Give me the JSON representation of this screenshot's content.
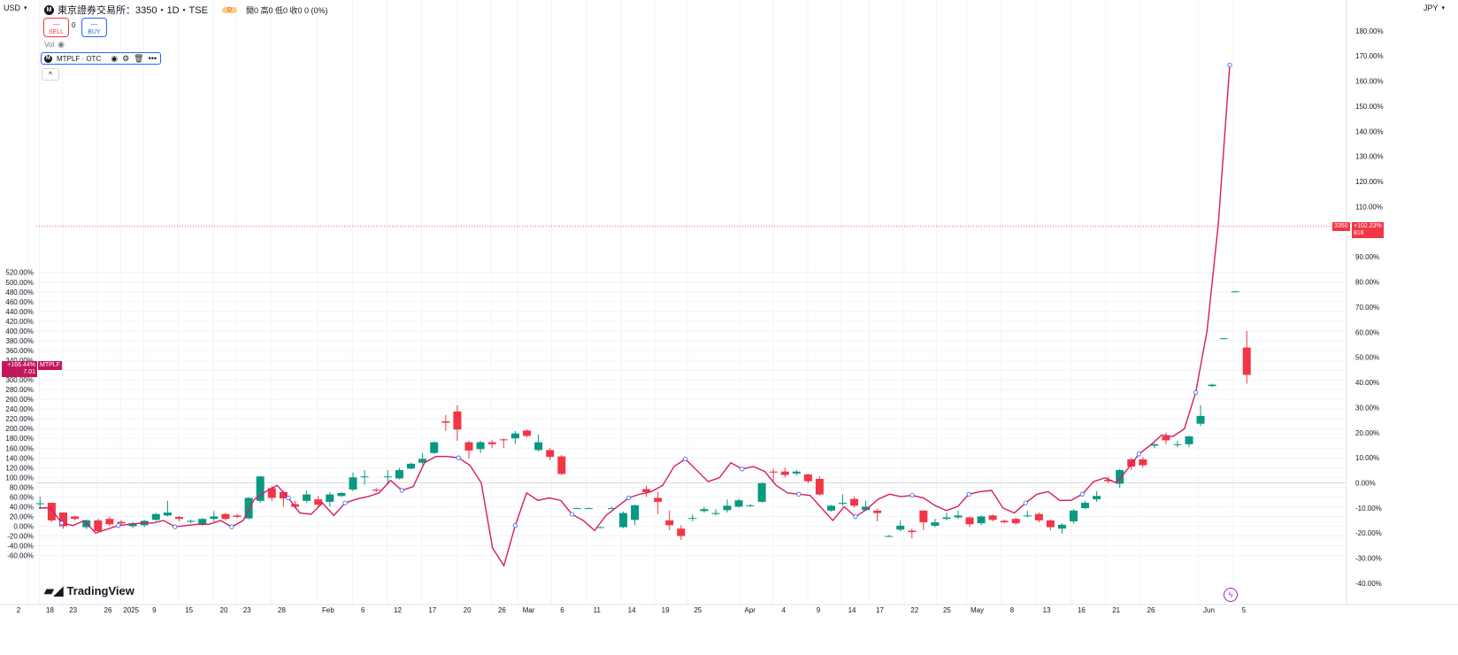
{
  "header": {
    "currency_left": "USD",
    "currency_right": "JPY",
    "symbol_icon": "M",
    "title": "東京證券交易所：3350・1D・TSE",
    "interval_badge": "D",
    "ohlc_text": "開0 高0 低0 收0 0 (0%)",
    "sell_label": "SELL",
    "buy_label": "BUY",
    "price_dash": "—",
    "spread": "0",
    "vol_label": "Vol",
    "compare_symbol": "MTPLF · OTC",
    "more_label": "•••",
    "collapse_label": "^"
  },
  "branding": {
    "logo_text": "TradingView"
  },
  "badges": {
    "main_pct": "+102.23%",
    "main_price": "3350",
    "main_sub": "816",
    "compare_pct": "+166.44%",
    "compare_price": "7.01",
    "compare_ticker": "MTPLF"
  },
  "icons": [
    "eye-icon",
    "settings-icon",
    "trash-icon",
    "lightning-icon",
    "chevron-up-icon"
  ],
  "colors": {
    "up": "#089981",
    "down": "#f23645",
    "compare_line": "#d81b60",
    "compare_marker": "#2962ff",
    "price_line": "#f23645"
  },
  "chart_data": {
    "type": "candlestick",
    "left_axis": {
      "unit": "%",
      "ylim": [
        -60,
        520
      ],
      "ticks": [
        "520.00%",
        "500.00%",
        "480.00%",
        "460.00%",
        "440.00%",
        "420.00%",
        "400.00%",
        "380.00%",
        "360.00%",
        "340.00%",
        "320.00%",
        "300.00%",
        "280.00%",
        "260.00%",
        "240.00%",
        "220.00%",
        "200.00%",
        "180.00%",
        "160.00%",
        "140.00%",
        "120.00%",
        "100.00%",
        "80.00%",
        "60.00%",
        "40.00%",
        "20.00%",
        "0.00%",
        "-20.00%",
        "-40.00%",
        "-60.00%"
      ]
    },
    "right_axis": {
      "unit": "%",
      "ylim": [
        -40,
        180
      ],
      "ticks": [
        "180.00%",
        "170.00%",
        "160.00%",
        "150.00%",
        "140.00%",
        "130.00%",
        "120.00%",
        "110.00%",
        "100.00%",
        "90.00%",
        "80.00%",
        "70.00%",
        "60.00%",
        "50.00%",
        "40.00%",
        "30.00%",
        "20.00%",
        "10.00%",
        "0.00%",
        "-10.00%",
        "-20.00%",
        "-30.00%",
        "-40.00%"
      ]
    },
    "x_ticks": [
      {
        "i": -1,
        "label": "2"
      },
      {
        "i": 0,
        "label": "18"
      },
      {
        "i": 2,
        "label": "23"
      },
      {
        "i": 5,
        "label": "26"
      },
      {
        "i": 7,
        "label": "2025"
      },
      {
        "i": 9,
        "label": "9"
      },
      {
        "i": 12,
        "label": "15"
      },
      {
        "i": 15,
        "label": "20"
      },
      {
        "i": 17,
        "label": "23"
      },
      {
        "i": 20,
        "label": "28"
      },
      {
        "i": 24,
        "label": "Feb"
      },
      {
        "i": 27,
        "label": "6"
      },
      {
        "i": 30,
        "label": "12"
      },
      {
        "i": 33,
        "label": "17"
      },
      {
        "i": 36,
        "label": "20"
      },
      {
        "i": 39,
        "label": "26"
      },
      {
        "i": 41.3,
        "label": "Mar"
      },
      {
        "i": 44.2,
        "label": "6"
      },
      {
        "i": 47.2,
        "label": "11"
      },
      {
        "i": 50.2,
        "label": "14"
      },
      {
        "i": 53.1,
        "label": "19"
      },
      {
        "i": 55.9,
        "label": "25"
      },
      {
        "i": 60.4,
        "label": "Apr"
      },
      {
        "i": 63.3,
        "label": "4"
      },
      {
        "i": 66.3,
        "label": "9"
      },
      {
        "i": 69.2,
        "label": "14"
      },
      {
        "i": 71.6,
        "label": "17"
      },
      {
        "i": 74.6,
        "label": "22"
      },
      {
        "i": 77.4,
        "label": "25"
      },
      {
        "i": 80,
        "label": "May"
      },
      {
        "i": 83,
        "label": "8"
      },
      {
        "i": 86,
        "label": "13"
      },
      {
        "i": 89,
        "label": "16"
      },
      {
        "i": 92,
        "label": "21"
      },
      {
        "i": 95,
        "label": "26"
      },
      {
        "i": 100,
        "label": "Jun"
      },
      {
        "i": 103,
        "label": "5"
      }
    ],
    "candles": [
      {
        "o": 45,
        "c": 47,
        "h": 60,
        "l": 35
      },
      {
        "o": 48,
        "c": 12,
        "h": 48,
        "l": 8
      },
      {
        "o": 28,
        "c": 0,
        "h": 28,
        "l": -5
      },
      {
        "o": 20,
        "c": 15,
        "h": 22,
        "l": 12
      },
      {
        "o": -2,
        "c": 12,
        "h": 14,
        "l": -6
      },
      {
        "o": 12,
        "c": -10,
        "h": 15,
        "l": -14
      },
      {
        "o": 15,
        "c": 4,
        "h": 20,
        "l": 0
      },
      {
        "o": 9,
        "c": 6,
        "h": 13,
        "l": 2
      },
      {
        "o": 0,
        "c": 6,
        "h": 9,
        "l": -4
      },
      {
        "o": 2,
        "c": 11,
        "h": 13,
        "l": -2
      },
      {
        "o": 13,
        "c": 25,
        "h": 27,
        "l": 11
      },
      {
        "o": 22,
        "c": 28,
        "h": 52,
        "l": 20
      },
      {
        "o": 19,
        "c": 15,
        "h": 21,
        "l": 10
      },
      {
        "o": 9,
        "c": 11,
        "h": 14,
        "l": 6
      },
      {
        "o": 3,
        "c": 15,
        "h": 17,
        "l": 1
      },
      {
        "o": 15,
        "c": 20,
        "h": 31,
        "l": 10
      },
      {
        "o": 25,
        "c": 15,
        "h": 27,
        "l": 12
      },
      {
        "o": 22,
        "c": 19,
        "h": 25,
        "l": 16
      },
      {
        "o": 16,
        "c": 58,
        "h": 60,
        "l": 14
      },
      {
        "o": 52,
        "c": 102,
        "h": 103,
        "l": 48
      },
      {
        "o": 78,
        "c": 58,
        "h": 82,
        "l": 52
      },
      {
        "o": 70,
        "c": 57,
        "h": 72,
        "l": 40
      },
      {
        "o": 45,
        "c": 40,
        "h": 52,
        "l": 36
      },
      {
        "o": 52,
        "c": 65,
        "h": 73,
        "l": 48
      },
      {
        "o": 55,
        "c": 44,
        "h": 62,
        "l": 40
      },
      {
        "o": 50,
        "c": 65,
        "h": 70,
        "l": 40
      },
      {
        "o": 62,
        "c": 68,
        "h": 70,
        "l": 60
      },
      {
        "o": 75,
        "c": 100,
        "h": 110,
        "l": 72
      },
      {
        "o": 101,
        "c": 102,
        "h": 115,
        "l": 85
      },
      {
        "o": 75,
        "c": 73,
        "h": 78,
        "l": 70
      },
      {
        "o": 101,
        "c": 102,
        "h": 115,
        "l": 85
      },
      {
        "o": 98,
        "c": 115,
        "h": 120,
        "l": 96
      },
      {
        "o": 118,
        "c": 128,
        "h": 130,
        "l": 116
      },
      {
        "o": 130,
        "c": 138,
        "h": 150,
        "l": 126
      },
      {
        "o": 150,
        "c": 172,
        "h": 174,
        "l": 148
      },
      {
        "o": 215,
        "c": 212,
        "h": 228,
        "l": 195
      },
      {
        "o": 235,
        "c": 198,
        "h": 248,
        "l": 175
      },
      {
        "o": 172,
        "c": 155,
        "h": 175,
        "l": 138
      },
      {
        "o": 158,
        "c": 172,
        "h": 175,
        "l": 150
      },
      {
        "o": 172,
        "c": 168,
        "h": 176,
        "l": 160
      },
      {
        "o": 178,
        "c": 176,
        "h": 180,
        "l": 160
      },
      {
        "o": 180,
        "c": 190,
        "h": 195,
        "l": 168
      },
      {
        "o": 196,
        "c": 185,
        "h": 198,
        "l": 182
      },
      {
        "o": 156,
        "c": 172,
        "h": 188,
        "l": 153
      },
      {
        "o": 156,
        "c": 142,
        "h": 160,
        "l": 135
      },
      {
        "o": 143,
        "c": 107,
        "h": 146,
        "l": 105
      }
    ],
    "candles_after_gap": [
      {
        "o": 37,
        "c": 37,
        "h": 38,
        "l": 36
      },
      {
        "o": 37,
        "c": 37,
        "h": 38,
        "l": 36
      },
      {
        "o": -2,
        "c": -2,
        "h": -1,
        "l": -3
      },
      {
        "o": 37,
        "c": 37,
        "h": 40,
        "l": 36
      },
      {
        "o": -2,
        "c": 27,
        "h": 30,
        "l": -4
      },
      {
        "o": 13,
        "c": 43,
        "h": 44,
        "l": 2
      },
      {
        "o": 76,
        "c": 70,
        "h": 83,
        "l": 60
      },
      {
        "o": 58,
        "c": 50,
        "h": 70,
        "l": 25
      },
      {
        "o": 12,
        "c": 2,
        "h": 32,
        "l": -8
      },
      {
        "o": -5,
        "c": -20,
        "h": 2,
        "l": -28
      },
      {
        "o": 17,
        "c": 17,
        "h": 24,
        "l": 10
      },
      {
        "o": 31,
        "c": 35,
        "h": 40,
        "l": 28
      },
      {
        "o": 25,
        "c": 27,
        "h": 35,
        "l": 22
      },
      {
        "o": 33,
        "c": 42,
        "h": 55,
        "l": 28
      },
      {
        "o": 40,
        "c": 53,
        "h": 56,
        "l": 38
      },
      {
        "o": 42,
        "c": 43,
        "h": 45,
        "l": 40
      },
      {
        "o": 50,
        "c": 88,
        "h": 90,
        "l": 48
      },
      {
        "o": 112,
        "c": 110,
        "h": 118,
        "l": 90
      },
      {
        "o": 112,
        "c": 105,
        "h": 120,
        "l": 100
      },
      {
        "o": 108,
        "c": 112,
        "h": 115,
        "l": 104
      },
      {
        "o": 106,
        "c": 92,
        "h": 108,
        "l": 88
      },
      {
        "o": 97,
        "c": 65,
        "h": 102,
        "l": 63
      },
      {
        "o": 32,
        "c": 42,
        "h": 44,
        "l": 30
      },
      {
        "o": 46,
        "c": 48,
        "h": 65,
        "l": 42
      },
      {
        "o": 56,
        "c": 42,
        "h": 60,
        "l": 38
      },
      {
        "o": 33,
        "c": 40,
        "h": 52,
        "l": 31
      },
      {
        "o": 32,
        "c": 27,
        "h": 36,
        "l": 10
      },
      {
        "o": -20,
        "c": -20,
        "h": -18,
        "l": -22
      },
      {
        "o": -7,
        "c": 1,
        "h": 12,
        "l": -10
      },
      {
        "o": -9,
        "c": -12,
        "h": -5,
        "l": -25
      },
      {
        "o": 32,
        "c": 8,
        "h": 33,
        "l": -8
      },
      {
        "o": 1,
        "c": 8,
        "h": 15,
        "l": -2
      },
      {
        "o": 15,
        "c": 18,
        "h": 28,
        "l": 12
      },
      {
        "o": 18,
        "c": 22,
        "h": 32,
        "l": 15
      },
      {
        "o": 18,
        "c": 4,
        "h": 20,
        "l": -2
      },
      {
        "o": 6,
        "c": 20,
        "h": 22,
        "l": 2
      },
      {
        "o": 22,
        "c": 13,
        "h": 24,
        "l": 10
      },
      {
        "o": 11,
        "c": 8,
        "h": 14,
        "l": 6
      },
      {
        "o": 15,
        "c": 6,
        "h": 18,
        "l": 3
      },
      {
        "o": 22,
        "c": 22,
        "h": 32,
        "l": 18
      },
      {
        "o": 25,
        "c": 12,
        "h": 28,
        "l": 8
      },
      {
        "o": 12,
        "c": -2,
        "h": 14,
        "l": -8
      },
      {
        "o": -5,
        "c": 3,
        "h": 6,
        "l": -15
      },
      {
        "o": 10,
        "c": 32,
        "h": 35,
        "l": 6
      },
      {
        "o": 37,
        "c": 48,
        "h": 52,
        "l": 35
      },
      {
        "o": 55,
        "c": 62,
        "h": 72,
        "l": 50
      },
      {
        "o": 95,
        "c": 92,
        "h": 102,
        "l": 88
      },
      {
        "o": 87,
        "c": 115,
        "h": 117,
        "l": 78
      },
      {
        "o": 137,
        "c": 122,
        "h": 140,
        "l": 115
      },
      {
        "o": 137,
        "c": 125,
        "h": 142,
        "l": 120
      },
      {
        "o": 165,
        "c": 168,
        "h": 170,
        "l": 160
      },
      {
        "o": 184,
        "c": 176,
        "h": 192,
        "l": 168
      },
      {
        "o": 168,
        "c": 168,
        "h": 175,
        "l": 162
      },
      {
        "o": 168,
        "c": 184,
        "h": 185,
        "l": 162
      },
      {
        "o": 210,
        "c": 226,
        "h": 248,
        "l": 205
      },
      {
        "o": 287,
        "c": 290,
        "h": 292,
        "l": 285
      },
      {
        "o": 385,
        "c": 385,
        "h": 386,
        "l": 384
      },
      {
        "o": 481,
        "c": 481,
        "h": 482,
        "l": 480
      },
      {
        "o": 366,
        "c": 310,
        "h": 400,
        "l": 292
      }
    ],
    "compare_series_pct": [
      -10.0,
      -10.0,
      -16.0,
      -17.0,
      -15.0,
      -20.0,
      -18.5,
      -17.0,
      -16.5,
      -16.0,
      -16.0,
      -15.0,
      -17.5,
      -17.0,
      -16.5,
      -16.5,
      -15.0,
      -17.5,
      -15.0,
      -6.5,
      -3.5,
      -1.0,
      -6.0,
      -12.0,
      -12.5,
      -8.0,
      -13.0,
      -8.0,
      -6.5,
      -5.5,
      -4.0,
      1.0,
      -3.0,
      -1.5,
      8.0,
      10.5,
      10.5,
      10.0,
      7.0,
      0.0,
      -26.0,
      -33.0,
      -17.0,
      -4.0,
      -7.0,
      -6.0,
      -7.0,
      -12.5,
      -15.0,
      -19.0,
      -13.0,
      -9.5,
      -6.0,
      -4.5,
      -3.5,
      -1.0,
      6.5,
      9.5,
      5.0,
      0.5,
      2.0,
      8.0,
      5.5,
      6.5,
      4.5,
      -1.0,
      -4.0,
      -4.5,
      -5.0,
      -10.0,
      -15.0,
      -9.5,
      -13.5,
      -10.5,
      -6.5,
      -4.5,
      -5.5,
      -5.0,
      -6.0,
      -9.0,
      -11.0,
      -9.5,
      -4.5,
      -3.5,
      -3.0,
      -10.0,
      -12.0,
      -8.0,
      -4.5,
      -3.5,
      -7.0,
      -7.0,
      -4.5,
      0.5,
      2.0,
      0.0,
      5.5,
      11.5,
      15.0,
      19.0,
      18.5,
      21.5,
      36.0,
      60.5,
      103.5,
      166.4
    ],
    "reference_line_pct": 102.23,
    "reference_price": 3350
  }
}
